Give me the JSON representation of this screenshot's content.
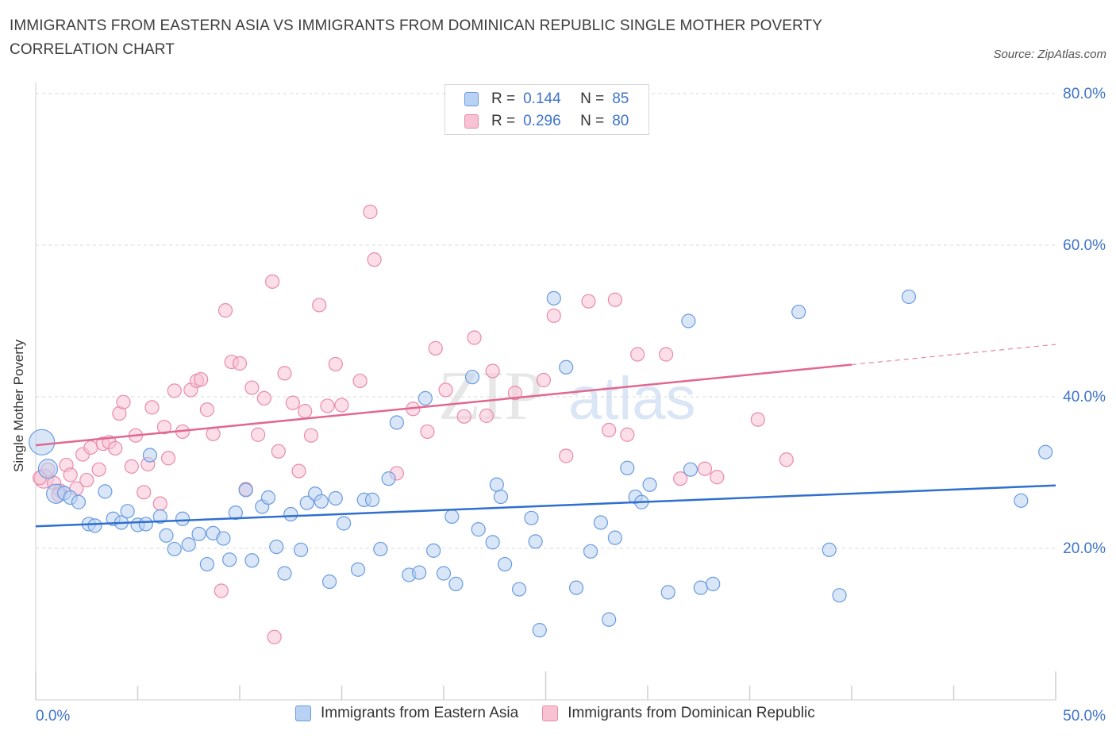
{
  "header": {
    "title": "IMMIGRANTS FROM EASTERN ASIA VS IMMIGRANTS FROM DOMINICAN REPUBLIC SINGLE MOTHER POVERTY CORRELATION CHART",
    "source": "Source: ZipAtlas.com"
  },
  "legend": {
    "rows": [
      {
        "r_label": "R =",
        "r_value": "0.144",
        "n_label": "N =",
        "n_value": "85"
      },
      {
        "r_label": "R =",
        "r_value": "0.296",
        "n_label": "N =",
        "n_value": "80"
      }
    ]
  },
  "colors": {
    "blue_fill": "#b9d1f2",
    "blue_stroke": "#6a9be0",
    "blue_line": "#2f6fcf",
    "pink_fill": "#f7c3d3",
    "pink_stroke": "#e98aab",
    "pink_line": "#e0688f",
    "tick_text": "#3f74c9",
    "grid": "#d9d9d9"
  },
  "chart_data": {
    "type": "scatter",
    "title": "IMMIGRANTS FROM EASTERN ASIA VS IMMIGRANTS FROM DOMINICAN REPUBLIC SINGLE MOTHER POVERTY CORRELATION CHART",
    "xlabel": "",
    "ylabel": "Single Mother Poverty",
    "xlim": [
      0,
      50
    ],
    "ylim": [
      0,
      80
    ],
    "x_tick_labels": [
      "0.0%",
      "50.0%"
    ],
    "y_ticks": [
      20,
      40,
      60,
      80
    ],
    "y_tick_labels": [
      "20.0%",
      "40.0%",
      "60.0%",
      "80.0%"
    ],
    "watermark": {
      "part1": "ZIP",
      "part2": "atlas"
    },
    "series": [
      {
        "name": "Immigrants from Eastern Asia",
        "color": "blue",
        "R": 0.144,
        "N": 85,
        "trend": {
          "x": [
            0,
            50
          ],
          "y": [
            22.9,
            28.3
          ],
          "dashed_from": null
        },
        "points": [
          [
            0.3,
            34.0,
            "xl"
          ],
          [
            0.6,
            30.5,
            "lg"
          ],
          [
            1.0,
            27.2,
            "lg"
          ],
          [
            1.4,
            27.3
          ],
          [
            1.7,
            26.7
          ],
          [
            2.1,
            26.1
          ],
          [
            2.6,
            23.2
          ],
          [
            2.9,
            23.0
          ],
          [
            3.4,
            27.5
          ],
          [
            3.8,
            23.9
          ],
          [
            4.2,
            23.4
          ],
          [
            4.5,
            24.9
          ],
          [
            5.0,
            23.1
          ],
          [
            5.4,
            23.2
          ],
          [
            5.6,
            32.3
          ],
          [
            6.1,
            24.2
          ],
          [
            6.4,
            21.7
          ],
          [
            6.8,
            19.9
          ],
          [
            7.2,
            23.9
          ],
          [
            7.5,
            20.5
          ],
          [
            8.0,
            21.9
          ],
          [
            8.4,
            17.9
          ],
          [
            8.7,
            22.0
          ],
          [
            9.2,
            21.3
          ],
          [
            9.5,
            18.5
          ],
          [
            9.8,
            24.7
          ],
          [
            10.3,
            27.7
          ],
          [
            10.6,
            18.4
          ],
          [
            11.1,
            25.5
          ],
          [
            11.4,
            26.7
          ],
          [
            11.8,
            20.2
          ],
          [
            12.2,
            16.7
          ],
          [
            12.5,
            24.5
          ],
          [
            13.0,
            19.8
          ],
          [
            13.3,
            26.0
          ],
          [
            13.7,
            27.2
          ],
          [
            14.0,
            26.2
          ],
          [
            14.4,
            15.6
          ],
          [
            14.7,
            26.6
          ],
          [
            15.1,
            23.3
          ],
          [
            15.8,
            17.2
          ],
          [
            16.1,
            26.4
          ],
          [
            16.5,
            26.4
          ],
          [
            16.9,
            19.9
          ],
          [
            17.3,
            29.2
          ],
          [
            17.7,
            36.6
          ],
          [
            18.3,
            16.5
          ],
          [
            18.8,
            16.8
          ],
          [
            19.1,
            39.8
          ],
          [
            19.5,
            19.7
          ],
          [
            20.0,
            16.7
          ],
          [
            20.4,
            24.2
          ],
          [
            20.6,
            15.3
          ],
          [
            21.4,
            42.6
          ],
          [
            21.7,
            22.5
          ],
          [
            22.4,
            20.8
          ],
          [
            22.6,
            28.4
          ],
          [
            22.8,
            26.8
          ],
          [
            23.0,
            17.9
          ],
          [
            23.7,
            14.6
          ],
          [
            24.3,
            24.0
          ],
          [
            24.5,
            20.9
          ],
          [
            24.7,
            9.2
          ],
          [
            25.4,
            53.0
          ],
          [
            26.0,
            43.9
          ],
          [
            26.5,
            14.8
          ],
          [
            27.2,
            19.6
          ],
          [
            27.7,
            23.4
          ],
          [
            28.1,
            10.6
          ],
          [
            28.4,
            21.4
          ],
          [
            29.0,
            30.6
          ],
          [
            29.4,
            26.8
          ],
          [
            29.7,
            26.1
          ],
          [
            30.1,
            28.4
          ],
          [
            31.0,
            14.2
          ],
          [
            32.0,
            50.0
          ],
          [
            32.1,
            30.4
          ],
          [
            32.6,
            14.8
          ],
          [
            33.2,
            15.3
          ],
          [
            37.4,
            51.2
          ],
          [
            38.9,
            19.8
          ],
          [
            39.4,
            13.8
          ],
          [
            42.8,
            53.2
          ],
          [
            48.3,
            26.3
          ],
          [
            49.5,
            32.7
          ]
        ]
      },
      {
        "name": "Immigrants from Dominican Republic",
        "color": "pink",
        "R": 0.296,
        "N": 80,
        "trend": {
          "x": [
            0,
            50
          ],
          "y": [
            33.6,
            46.9
          ],
          "dashed_from": 40.0
        },
        "points": [
          [
            0.4,
            29.2,
            "lg"
          ],
          [
            0.6,
            30.4
          ],
          [
            0.9,
            28.6
          ],
          [
            1.2,
            27.6
          ],
          [
            1.5,
            31.0
          ],
          [
            1.7,
            29.7
          ],
          [
            2.0,
            27.9
          ],
          [
            2.3,
            32.4
          ],
          [
            2.5,
            29.0
          ],
          [
            2.7,
            33.3
          ],
          [
            3.1,
            30.4
          ],
          [
            3.3,
            33.8
          ],
          [
            3.6,
            34.0
          ],
          [
            3.9,
            33.2
          ],
          [
            4.1,
            37.8
          ],
          [
            4.3,
            39.3
          ],
          [
            4.7,
            30.8
          ],
          [
            4.9,
            34.9
          ],
          [
            5.3,
            27.4
          ],
          [
            5.5,
            31.1
          ],
          [
            5.7,
            38.6
          ],
          [
            6.1,
            25.9
          ],
          [
            6.3,
            36.0
          ],
          [
            6.5,
            31.9
          ],
          [
            6.8,
            40.8
          ],
          [
            7.2,
            35.4
          ],
          [
            7.6,
            40.9
          ],
          [
            7.9,
            42.1
          ],
          [
            8.1,
            42.3
          ],
          [
            8.4,
            38.3
          ],
          [
            8.7,
            35.1
          ],
          [
            9.3,
            51.4
          ],
          [
            9.6,
            44.6
          ],
          [
            10.0,
            44.4
          ],
          [
            10.3,
            27.8
          ],
          [
            10.6,
            41.2
          ],
          [
            10.9,
            35.0
          ],
          [
            11.2,
            39.8
          ],
          [
            11.6,
            55.2
          ],
          [
            11.9,
            32.8
          ],
          [
            12.2,
            43.1
          ],
          [
            12.6,
            39.2
          ],
          [
            12.9,
            30.2
          ],
          [
            13.2,
            38.1
          ],
          [
            13.5,
            34.9
          ],
          [
            13.9,
            52.1
          ],
          [
            14.3,
            38.8
          ],
          [
            14.7,
            44.3
          ],
          [
            15.0,
            38.9
          ],
          [
            15.9,
            42.1
          ],
          [
            16.4,
            64.4
          ],
          [
            16.6,
            58.1
          ],
          [
            17.7,
            29.9
          ],
          [
            18.5,
            38.4
          ],
          [
            19.2,
            35.4
          ],
          [
            19.6,
            46.4
          ],
          [
            20.1,
            40.9
          ],
          [
            21.0,
            37.4
          ],
          [
            21.5,
            47.8
          ],
          [
            22.1,
            37.5
          ],
          [
            22.4,
            43.4
          ],
          [
            23.5,
            40.5
          ],
          [
            24.9,
            42.2
          ],
          [
            25.4,
            50.7
          ],
          [
            26.0,
            32.2
          ],
          [
            27.1,
            52.6
          ],
          [
            28.1,
            35.6
          ],
          [
            28.4,
            52.8
          ],
          [
            29.0,
            35.0
          ],
          [
            29.5,
            45.6
          ],
          [
            30.9,
            45.6
          ],
          [
            31.6,
            29.2
          ],
          [
            32.8,
            30.5
          ],
          [
            33.4,
            29.4
          ],
          [
            35.4,
            37.0
          ],
          [
            36.8,
            31.7
          ],
          [
            9.1,
            14.4
          ],
          [
            11.7,
            8.3
          ],
          [
            1.1,
            27.1
          ],
          [
            0.2,
            29.3
          ]
        ]
      }
    ]
  }
}
